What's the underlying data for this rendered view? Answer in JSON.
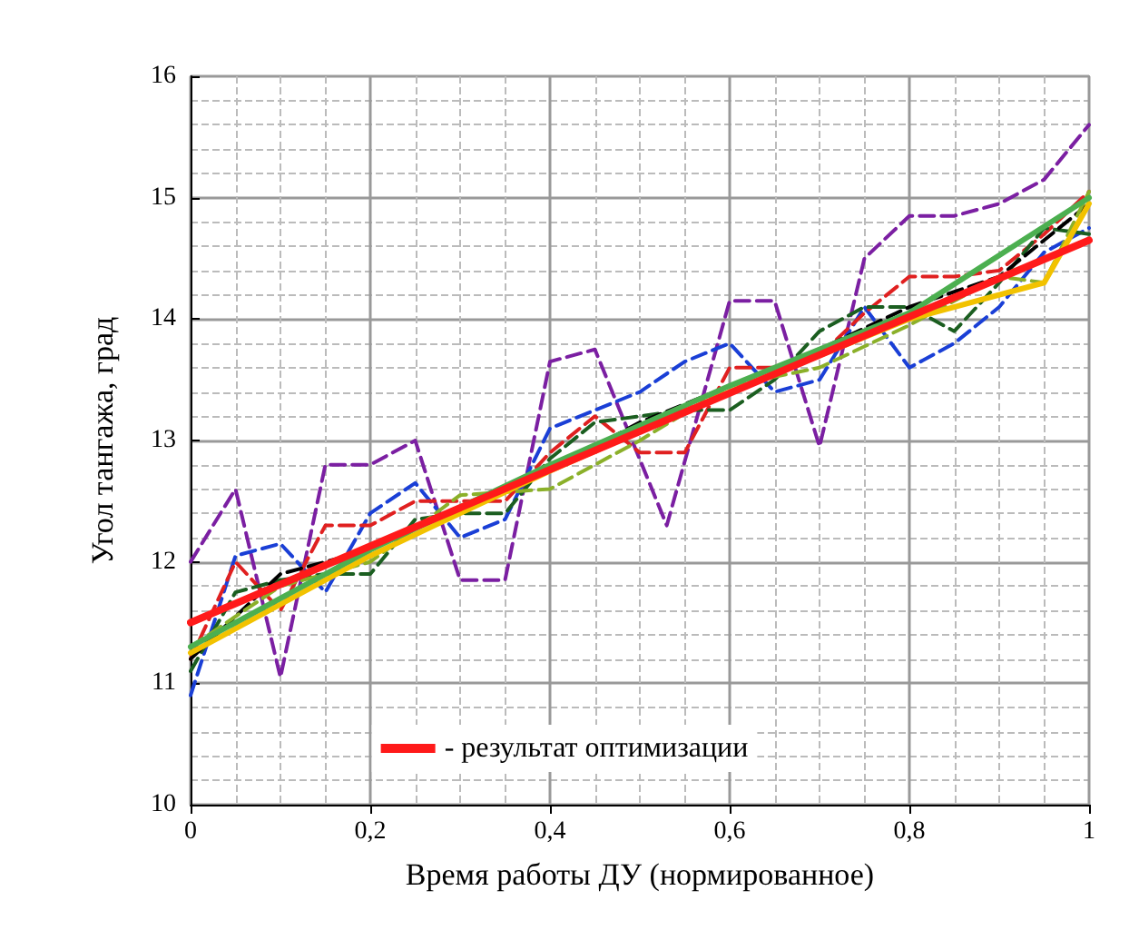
{
  "chart_data": {
    "type": "line",
    "xlabel": "Время работы ДУ (нормированное)",
    "ylabel": "Угол тангажа, град",
    "xlim": [
      0,
      1
    ],
    "xticks": [
      0,
      {
        "value": 0.2,
        "label": "0,2"
      },
      {
        "value": 0.4,
        "label": "0,4"
      },
      {
        "value": 0.6,
        "label": "0,6"
      },
      {
        "value": 0.8,
        "label": "0,8"
      },
      1
    ],
    "ylim": [
      10,
      16
    ],
    "yticks": [
      10,
      11,
      12,
      13,
      14,
      15,
      16
    ],
    "grid": true,
    "marker": "none",
    "legend": "bottom",
    "series": [
      {
        "color": "#7b1fa2",
        "line_style": "dashed",
        "x": [
          0,
          0.05,
          0.1,
          0.15,
          0.2,
          0.25,
          0.3,
          0.35,
          0.4,
          0.45,
          0.53,
          0.6,
          0.65,
          0.7,
          0.75,
          0.8,
          0.85,
          0.9,
          0.95,
          1
        ],
        "values": [
          12.0,
          12.6,
          11.05,
          12.8,
          12.8,
          13.0,
          11.85,
          11.85,
          13.65,
          13.75,
          12.3,
          14.15,
          14.15,
          12.95,
          14.5,
          14.85,
          14.85,
          14.95,
          15.15,
          15.6
        ]
      },
      {
        "color": "#1a3fd6",
        "line_style": "dashed",
        "x": [
          0,
          0.05,
          0.1,
          0.15,
          0.2,
          0.25,
          0.3,
          0.35,
          0.4,
          0.45,
          0.5,
          0.55,
          0.6,
          0.65,
          0.7,
          0.75,
          0.8,
          0.85,
          0.9,
          0.95,
          1
        ],
        "values": [
          10.9,
          12.05,
          12.15,
          11.75,
          12.4,
          12.65,
          12.2,
          12.35,
          13.1,
          13.25,
          13.4,
          13.65,
          13.8,
          13.4,
          13.5,
          14.1,
          13.6,
          13.8,
          14.1,
          14.55,
          14.75
        ]
      },
      {
        "color": "#e02020",
        "line_style": "dashed",
        "x": [
          0,
          0.05,
          0.1,
          0.15,
          0.2,
          0.25,
          0.3,
          0.35,
          0.4,
          0.45,
          0.5,
          0.55,
          0.6,
          0.65,
          0.7,
          0.75,
          0.8,
          0.85,
          0.9,
          0.95,
          1
        ],
        "values": [
          11.2,
          12.0,
          11.6,
          12.3,
          12.3,
          12.5,
          12.5,
          12.5,
          12.9,
          13.2,
          12.9,
          12.9,
          13.6,
          13.6,
          13.7,
          14.05,
          14.35,
          14.35,
          14.4,
          14.7,
          15.05
        ]
      },
      {
        "color": "#1b5e20",
        "line_style": "dashed",
        "x": [
          0,
          0.05,
          0.1,
          0.15,
          0.2,
          0.25,
          0.3,
          0.35,
          0.4,
          0.45,
          0.5,
          0.55,
          0.6,
          0.65,
          0.7,
          0.75,
          0.8,
          0.85,
          0.9,
          0.95,
          1
        ],
        "values": [
          11.1,
          11.75,
          11.85,
          11.9,
          11.9,
          12.35,
          12.4,
          12.4,
          12.85,
          13.15,
          13.2,
          13.25,
          13.25,
          13.5,
          13.9,
          14.1,
          14.1,
          13.9,
          14.3,
          14.75,
          14.7
        ]
      },
      {
        "color": "#000000",
        "line_style": "dashed",
        "x": [
          0,
          0.1,
          0.2,
          0.3,
          0.4,
          0.5,
          0.6,
          0.7,
          0.8,
          0.9,
          1
        ],
        "values": [
          11.2,
          11.9,
          12.1,
          12.45,
          12.75,
          13.15,
          13.45,
          13.75,
          14.1,
          14.35,
          14.95
        ]
      },
      {
        "color": "#8bb02a",
        "line_style": "dashed",
        "x": [
          0,
          0.1,
          0.2,
          0.3,
          0.4,
          0.5,
          0.6,
          0.7,
          0.8,
          0.9,
          0.95,
          1
        ],
        "values": [
          11.3,
          11.8,
          12.0,
          12.55,
          12.6,
          13.0,
          13.45,
          13.6,
          13.95,
          14.35,
          14.3,
          15.05
        ]
      },
      {
        "color": "#f2c200",
        "line_style": "solid",
        "x": [
          0,
          0.2,
          0.4,
          0.6,
          0.8,
          0.95,
          1
        ],
        "values": [
          11.25,
          12.05,
          12.75,
          13.4,
          14.0,
          14.3,
          14.95
        ]
      },
      {
        "color": "#4caf50",
        "line_style": "solid",
        "x": [
          0,
          0.2,
          0.4,
          0.6,
          0.8,
          1
        ],
        "values": [
          11.3,
          12.1,
          12.8,
          13.45,
          14.05,
          15.0
        ]
      },
      {
        "name": "- результат оптимизации",
        "color": "#ff1a1a",
        "line_style": "solid",
        "x": [
          0,
          1
        ],
        "values": [
          11.5,
          14.65
        ]
      }
    ]
  }
}
